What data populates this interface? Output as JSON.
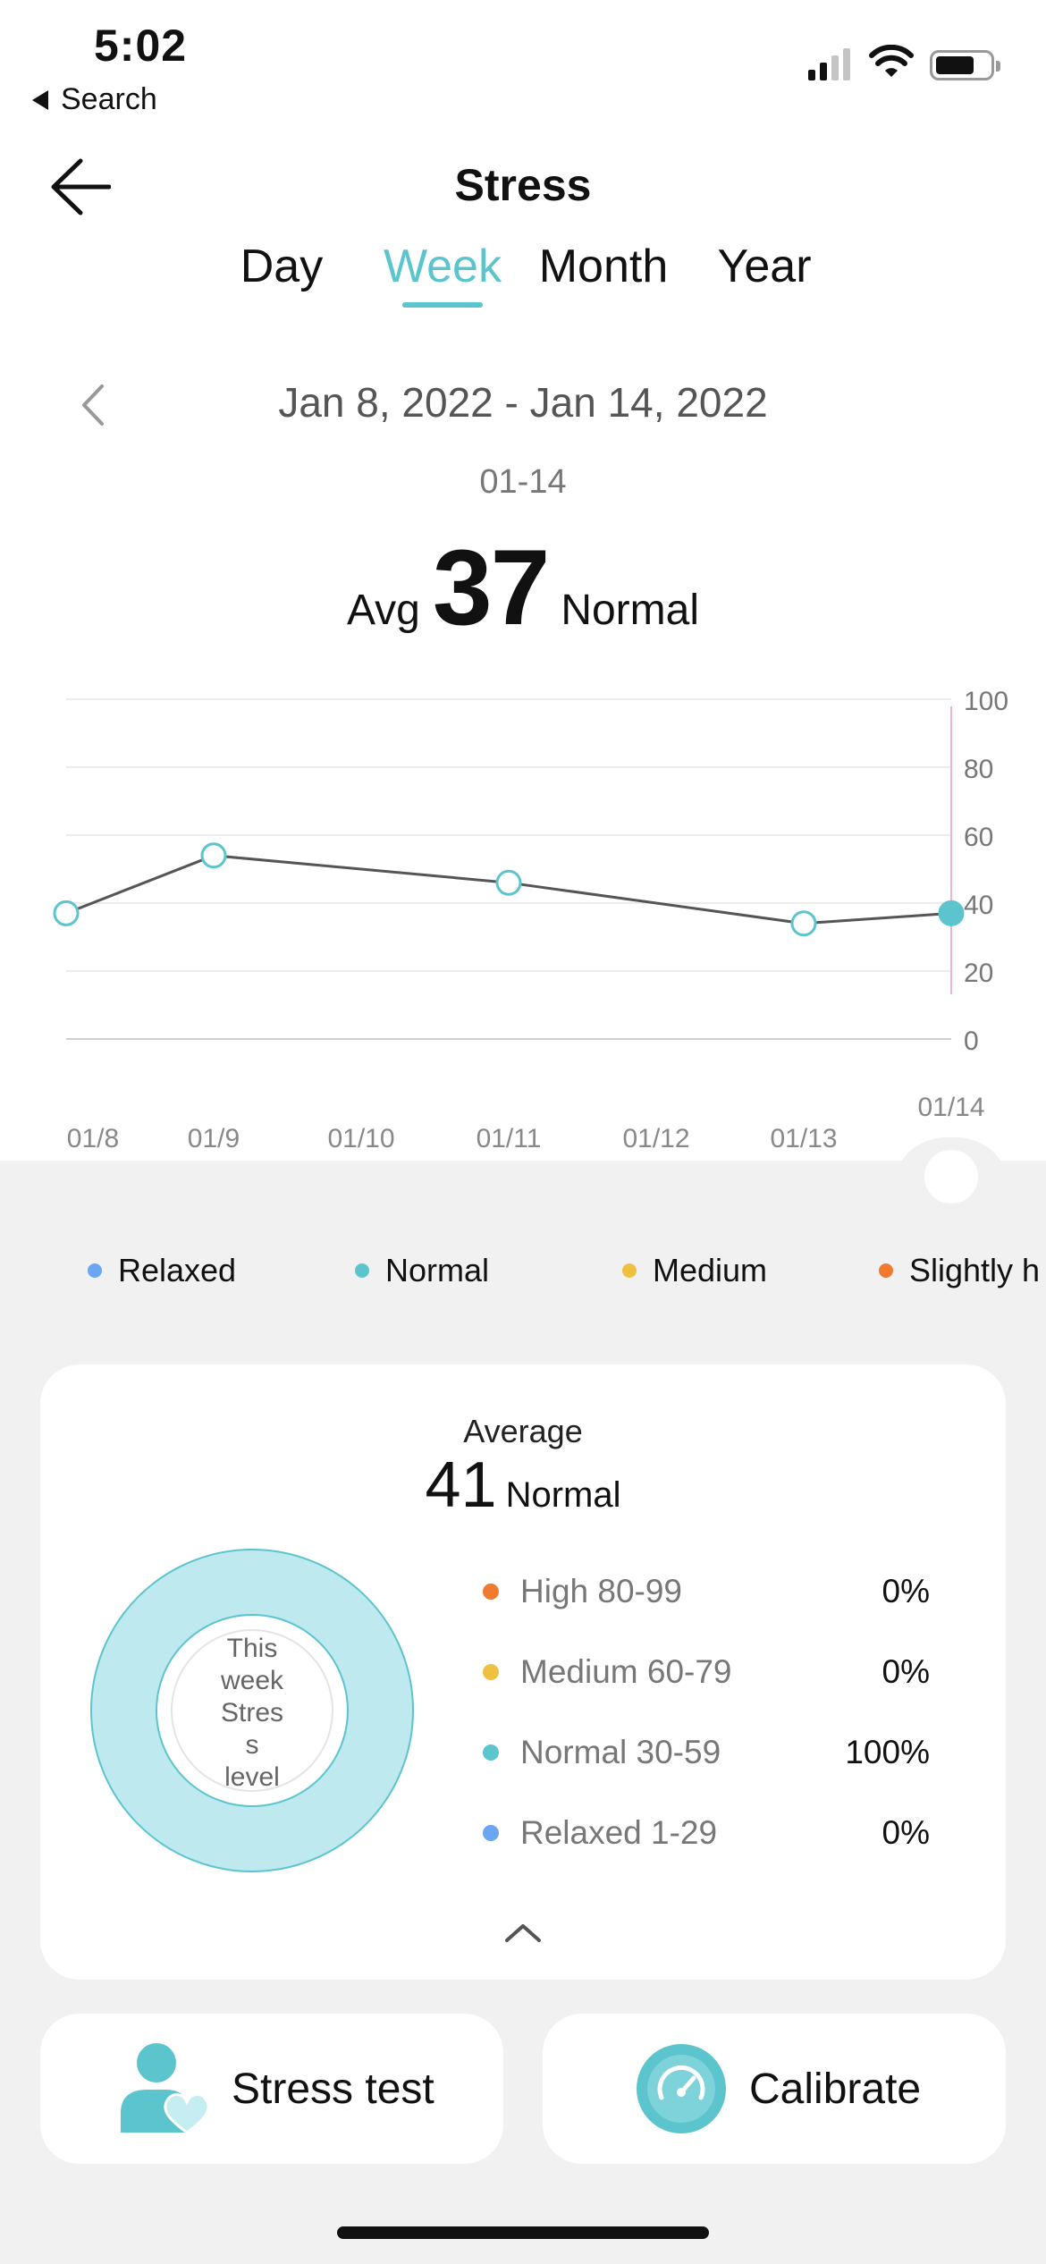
{
  "status_bar": {
    "time": "5:02",
    "back_label": "Search"
  },
  "header": {
    "title": "Stress"
  },
  "tabs": [
    {
      "label": "Day",
      "active": false
    },
    {
      "label": "Week",
      "active": true
    },
    {
      "label": "Month",
      "active": false
    },
    {
      "label": "Year",
      "active": false
    }
  ],
  "period": {
    "range": "Jan 8, 2022 - Jan 14, 2022",
    "selected_date": "01-14"
  },
  "summary": {
    "avg_label": "Avg",
    "avg_value": "37",
    "avg_status": "Normal"
  },
  "chart_data": {
    "type": "line",
    "categories": [
      "01/8",
      "01/9",
      "01/10",
      "01/11",
      "01/12",
      "01/13",
      "01/14"
    ],
    "series": [
      {
        "values": [
          37,
          54,
          null,
          46,
          null,
          34,
          37
        ]
      }
    ],
    "selected_category": "01/14",
    "ylim": [
      0,
      100
    ],
    "yticks": [
      "100",
      "80",
      "60",
      "40",
      "20",
      "0"
    ],
    "grid": true,
    "line_color": "#555555",
    "point_color": "#5cc4cd"
  },
  "legend": [
    {
      "label": "Relaxed",
      "color": "#6aa6f2"
    },
    {
      "label": "Normal",
      "color": "#5cc4cd"
    },
    {
      "label": "Medium",
      "color": "#f0c040"
    },
    {
      "label": "Slightly h",
      "color": "#ef7a30"
    }
  ],
  "card": {
    "title": "Average",
    "avg_value": "41",
    "avg_status": "Normal",
    "donut_text": [
      "This",
      "week",
      "Stres",
      "s",
      "level"
    ],
    "distribution": [
      {
        "label": "High 80-99",
        "percent": "0%",
        "color": "#ef7a30"
      },
      {
        "label": "Medium 60-79",
        "percent": "0%",
        "color": "#f0c040"
      },
      {
        "label": "Normal 30-59",
        "percent": "100%",
        "color": "#5cc4cd"
      },
      {
        "label": "Relaxed 1-29",
        "percent": "0%",
        "color": "#6aa6f2"
      }
    ]
  },
  "buttons": {
    "stress_test": "Stress test",
    "calibrate": "Calibrate"
  },
  "colors": {
    "accent": "#5cc4cd",
    "background_grey": "#f1f1f2"
  }
}
